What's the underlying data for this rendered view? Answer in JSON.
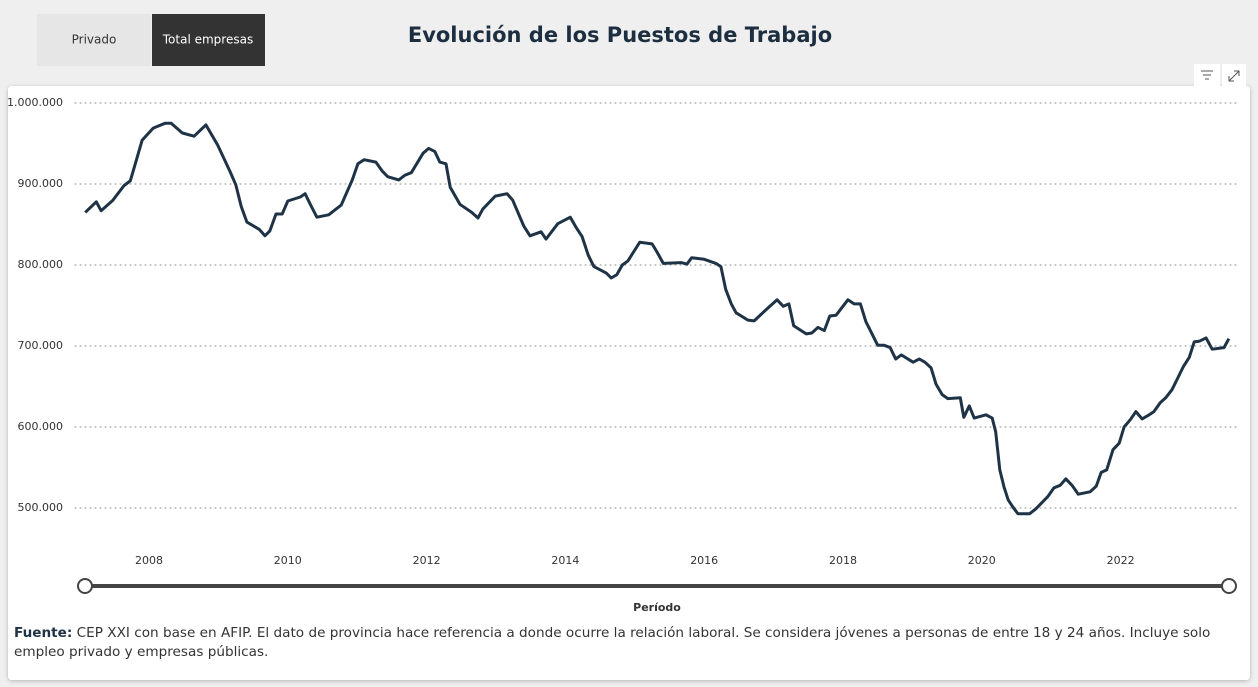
{
  "buttons": [
    "Privado",
    "Total empresas"
  ],
  "chart_data": {
    "type": "line",
    "title": "Evolución de los Puestos de Trabajo",
    "x_label": "Período",
    "color": "#1f3347",
    "grid": true,
    "xlim": [
      2007,
      2023.75
    ],
    "xticks": [
      2008,
      2010,
      2012,
      2014,
      2016,
      2018,
      2020,
      2022
    ],
    "ylim": [
      460000,
      1000000
    ],
    "yticks": [
      {
        "value": 500000,
        "label": "500.000"
      },
      {
        "value": 600000,
        "label": "600.000"
      },
      {
        "value": 700000,
        "label": "700.000"
      },
      {
        "value": 800000,
        "label": "800.000"
      },
      {
        "value": 900000,
        "label": "900.000"
      },
      {
        "value": 1000000,
        "label": "1.000.000"
      }
    ],
    "x": [
      2007.08,
      2007.24,
      2007.31,
      2007.48,
      2007.64,
      2007.73,
      2007.81,
      2007.9,
      2008.06,
      2008.23,
      2008.32,
      2008.48,
      2008.65,
      2008.82,
      2008.99,
      2009.17,
      2009.25,
      2009.33,
      2009.41,
      2009.59,
      2009.67,
      2009.74,
      2009.83,
      2009.92,
      2010.0,
      2010.18,
      2010.25,
      2010.33,
      2010.42,
      2010.59,
      2010.77,
      2010.93,
      2011.01,
      2011.1,
      2011.27,
      2011.36,
      2011.44,
      2011.6,
      2011.69,
      2011.78,
      2011.95,
      2012.03,
      2012.12,
      2012.19,
      2012.28,
      2012.34,
      2012.48,
      2012.65,
      2012.74,
      2012.81,
      2012.99,
      2013.16,
      2013.24,
      2013.4,
      2013.49,
      2013.65,
      2013.72,
      2013.89,
      2014.07,
      2014.15,
      2014.24,
      2014.33,
      2014.41,
      2014.59,
      2014.66,
      2014.74,
      2014.82,
      2014.9,
      2015.07,
      2015.25,
      2015.32,
      2015.41,
      2015.67,
      2015.75,
      2015.82,
      2016.0,
      2016.17,
      2016.24,
      2016.31,
      2016.39,
      2016.46,
      2016.63,
      2016.72,
      2016.88,
      2017.05,
      2017.14,
      2017.22,
      2017.29,
      2017.47,
      2017.55,
      2017.64,
      2017.73,
      2017.81,
      2017.9,
      2018.07,
      2018.16,
      2018.25,
      2018.33,
      2018.5,
      2018.59,
      2018.68,
      2018.76,
      2018.84,
      2019.01,
      2019.1,
      2019.18,
      2019.27,
      2019.34,
      2019.43,
      2019.51,
      2019.69,
      2019.74,
      2019.82,
      2019.89,
      2020.06,
      2020.15,
      2020.2,
      2020.26,
      2020.32,
      2020.38,
      2020.45,
      2020.52,
      2020.69,
      2020.78,
      2020.95,
      2021.04,
      2021.13,
      2021.21,
      2021.3,
      2021.39,
      2021.56,
      2021.65,
      2021.72,
      2021.8,
      2021.89,
      2021.98,
      2022.05,
      2022.14,
      2022.22,
      2022.31,
      2022.39,
      2022.48,
      2022.57,
      2022.65,
      2022.74,
      2022.81,
      2022.9,
      2022.99,
      2023.06,
      2023.14,
      2023.23,
      2023.32,
      2023.49,
      2023.56
    ],
    "values": [
      865000,
      878000,
      867000,
      880000,
      898000,
      904000,
      927000,
      954000,
      969000,
      975000,
      975000,
      963000,
      959000,
      973000,
      948000,
      915000,
      899000,
      872000,
      853000,
      844000,
      836000,
      842000,
      863000,
      863000,
      879000,
      884000,
      888000,
      874000,
      859000,
      862000,
      874000,
      905000,
      925000,
      930000,
      927000,
      916000,
      909000,
      905000,
      911000,
      914000,
      938000,
      944000,
      940000,
      927000,
      925000,
      896000,
      875000,
      865000,
      858000,
      869000,
      885000,
      888000,
      880000,
      848000,
      836000,
      841000,
      832000,
      851000,
      859000,
      847000,
      835000,
      812000,
      798000,
      790000,
      784000,
      788000,
      800000,
      805000,
      828000,
      826000,
      816000,
      802000,
      803000,
      801000,
      809000,
      807000,
      802000,
      798000,
      770000,
      752000,
      741000,
      732000,
      731000,
      744000,
      757000,
      749000,
      752000,
      725000,
      715000,
      716000,
      723000,
      719000,
      737000,
      738000,
      757000,
      752000,
      752000,
      730000,
      701000,
      701000,
      698000,
      684000,
      689000,
      680000,
      684000,
      680000,
      673000,
      653000,
      640000,
      635000,
      636000,
      612000,
      626000,
      611000,
      615000,
      611000,
      594000,
      547000,
      526000,
      510000,
      501000,
      493000,
      493000,
      499000,
      514000,
      525000,
      528000,
      536000,
      528000,
      517000,
      520000,
      527000,
      544000,
      547000,
      572000,
      580000,
      600000,
      609000,
      619000,
      610000,
      614000,
      619000,
      630000,
      636000,
      646000,
      658000,
      674000,
      686000,
      705000,
      706000,
      710000,
      696000,
      698000,
      709000
    ]
  },
  "footnote": {
    "label": "Fuente:",
    "text": "CEP XXI con base en AFIP. El dato de provincia hace referencia a donde ocurre la relación laboral. Se considera jóvenes a personas de entre 18 y 24 años. Incluye solo empleo privado y empresas públicas."
  }
}
